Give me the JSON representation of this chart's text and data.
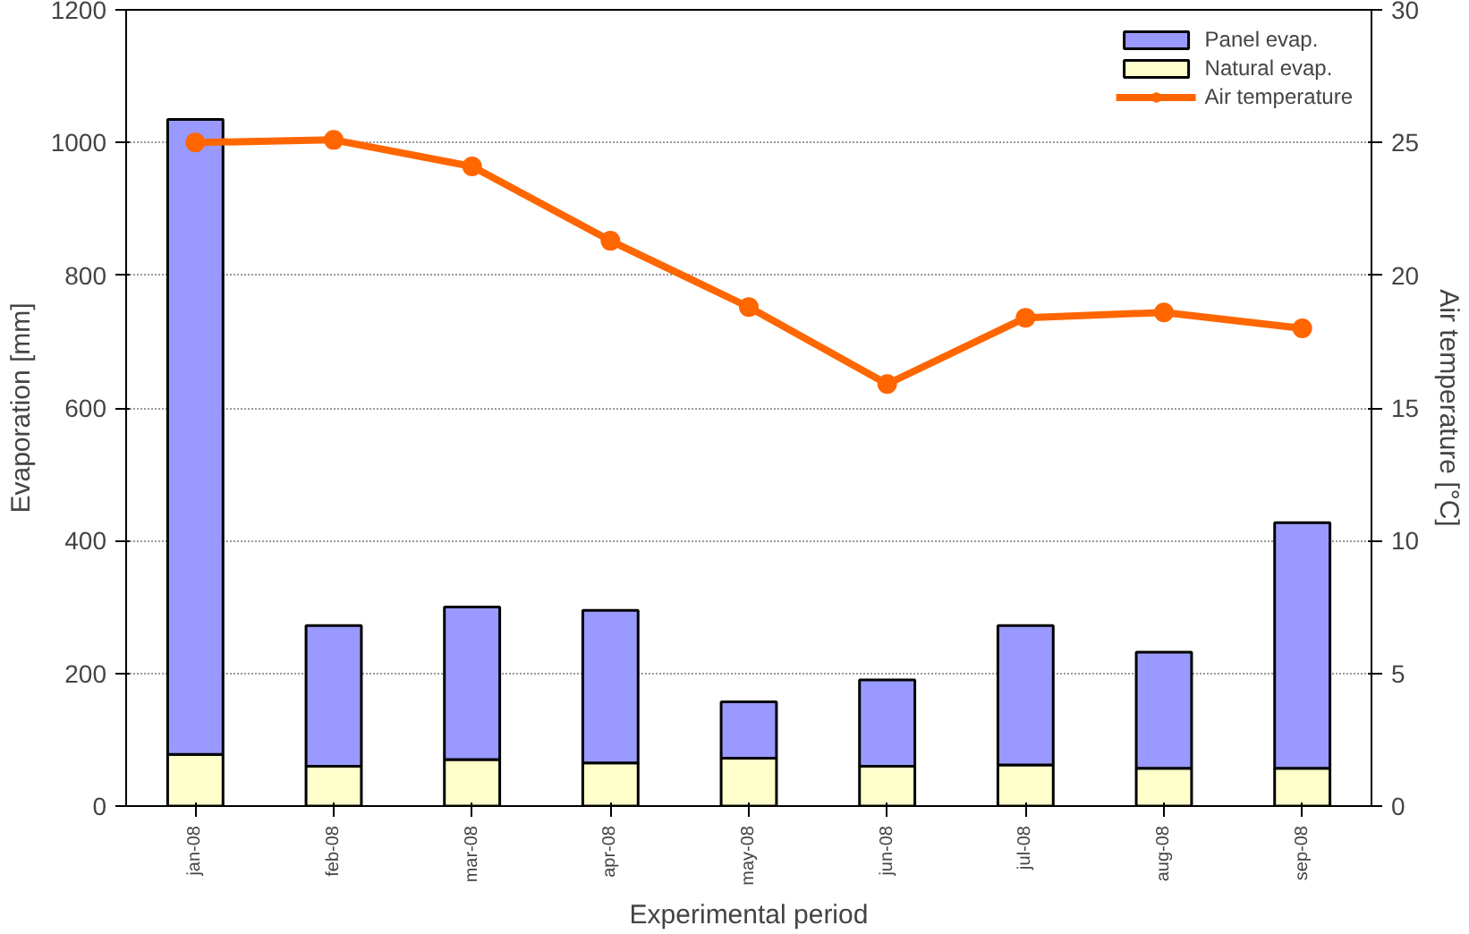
{
  "chart_data": {
    "type": "bar",
    "stacked": true,
    "xlabel": "Experimental period",
    "ylabel": "Evaporation [mm]",
    "y2label": "Air temperature [°C]",
    "categories": [
      "jan-08",
      "feb-08",
      "mar-08",
      "apr-08",
      "may-08",
      "jun-08",
      "jul-08",
      "aug-08",
      "sep-08"
    ],
    "series": [
      {
        "name": "Natural evap.",
        "color": "#ffffcc",
        "values": [
          78,
          60,
          70,
          65,
          72,
          60,
          62,
          57,
          57
        ]
      },
      {
        "name": "Panel evap.",
        "color": "#9999ff",
        "values": [
          957,
          212,
          230,
          230,
          85,
          130,
          210,
          175,
          370
        ]
      },
      {
        "name": "Air temperature",
        "type": "line",
        "axis": "y2",
        "color": "#ff6600",
        "marker": "circle",
        "values": [
          25.0,
          25.1,
          24.1,
          21.3,
          18.8,
          15.9,
          18.4,
          18.6,
          18.0
        ]
      }
    ],
    "ylim": [
      0,
      1200
    ],
    "yticks": [
      0,
      200,
      400,
      600,
      800,
      1000,
      1200
    ],
    "y2lim": [
      0,
      30
    ],
    "y2ticks": [
      0,
      5,
      10,
      15,
      20,
      25,
      30
    ],
    "grid": "y",
    "legend": "top right"
  }
}
